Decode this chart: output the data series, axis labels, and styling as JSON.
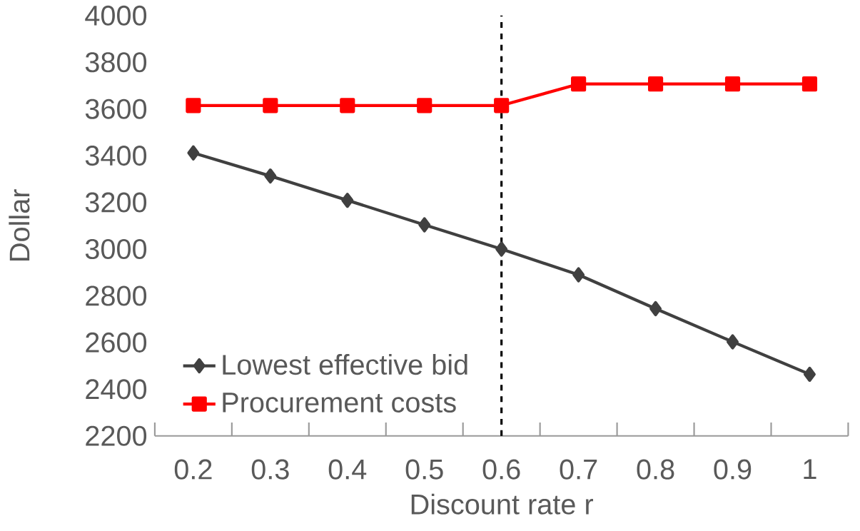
{
  "chart_data": {
    "type": "line",
    "xlabel": "Discount rate r",
    "ylabel": "Dollar",
    "x": [
      0.2,
      0.3,
      0.4,
      0.5,
      0.6,
      0.7,
      0.8,
      0.9,
      1
    ],
    "xlim": [
      0.15,
      1.05
    ],
    "xticks": [
      0.2,
      0.3,
      0.4,
      0.5,
      0.6,
      0.7,
      0.8,
      0.9,
      1
    ],
    "ylim": [
      2200,
      4000
    ],
    "yticks": [
      2200,
      2400,
      2600,
      2800,
      3000,
      3200,
      3400,
      3600,
      3800,
      4000
    ],
    "series": [
      {
        "name": "Lowest effective bid",
        "color": "#404040",
        "marker": "diamond",
        "values": [
          3412,
          3313,
          3209,
          3104,
          3000,
          2890,
          2745,
          2603,
          2464
        ]
      },
      {
        "name": "Procurement costs",
        "color": "#ff0000",
        "marker": "square",
        "values": [
          3615,
          3615,
          3615,
          3615,
          3615,
          3707,
          3707,
          3707,
          3707
        ]
      }
    ],
    "ref_lines": [
      {
        "axis": "x",
        "value": 0.6,
        "color": "#000000",
        "line_style": "dashed"
      }
    ],
    "legend": "bottom left",
    "grid": false,
    "line_style": "solid"
  }
}
